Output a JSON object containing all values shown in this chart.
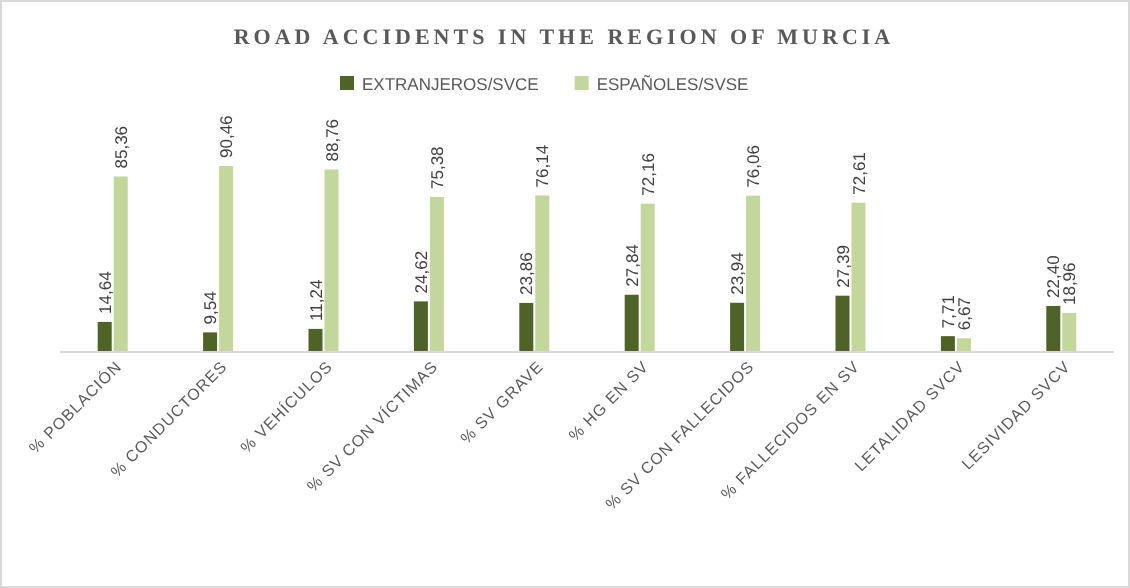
{
  "chart_data": {
    "type": "bar",
    "title": "ROAD ACCIDENTS IN THE REGION OF MURCIA",
    "categories": [
      "% POBLACIÓN",
      "% CONDUCTORES",
      "% VEHÍCULOS",
      "% SV CON VÍCTIMAS",
      "% SV GRAVE",
      "% HG EN SV",
      "% SV CON FALLECIDOS",
      "% FALLECIDOS EN SV",
      "LETALIDAD SVCV",
      "LESIVIDAD SVCV"
    ],
    "series": [
      {
        "name": "EXTRANJEROS/SVCE",
        "color": "#4f6228",
        "values": [
          14.64,
          9.54,
          11.24,
          24.62,
          23.86,
          27.84,
          23.94,
          27.39,
          7.71,
          22.4
        ],
        "value_labels": [
          "14,64",
          "9,54",
          "11,24",
          "24,62",
          "23,86",
          "27,84",
          "23,94",
          "27,39",
          "7,71",
          "22,40"
        ]
      },
      {
        "name": "ESPAÑOLES/SVSE",
        "color": "#c3d69b",
        "values": [
          85.36,
          90.46,
          88.76,
          75.38,
          76.14,
          72.16,
          76.06,
          72.61,
          6.67,
          18.96
        ],
        "value_labels": [
          "85,36",
          "90,46",
          "88,76",
          "75,38",
          "76,14",
          "72,16",
          "76,06",
          "72,61",
          "6,67",
          "18,96"
        ]
      }
    ],
    "legend": "top"
  }
}
